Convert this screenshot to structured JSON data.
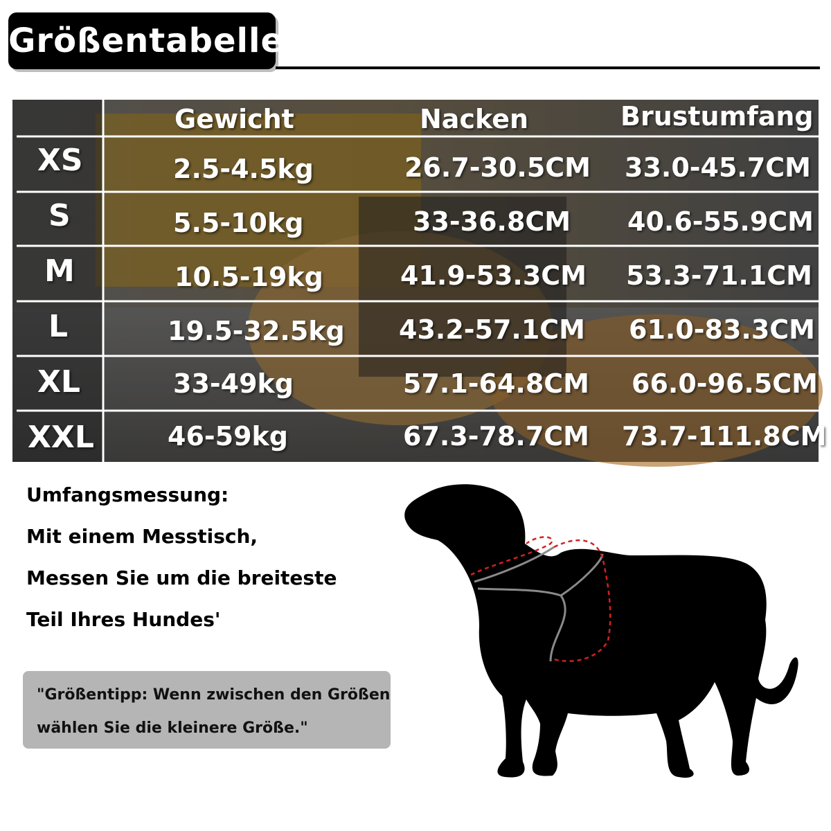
{
  "title": "Größentabelle",
  "table": {
    "headers": [
      "Gewicht",
      "Nacken",
      "Brustumfang"
    ],
    "rows": [
      {
        "size": "XS",
        "gewicht": "2.5-4.5kg",
        "nacken": "26.7-30.5CM",
        "brust": "33.0-45.7CM"
      },
      {
        "size": "S",
        "gewicht": "5.5-10kg",
        "nacken": "33-36.8CM",
        "brust": "40.6-55.9CM"
      },
      {
        "size": "M",
        "gewicht": "10.5-19kg",
        "nacken": "41.9-53.3CM",
        "brust": "53.3-71.1CM"
      },
      {
        "size": "L",
        "gewicht": "19.5-32.5kg",
        "nacken": "43.2-57.1CM",
        "brust": "61.0-83.3CM"
      },
      {
        "size": "XL",
        "gewicht": "33-49kg",
        "nacken": "57.1-64.8CM",
        "brust": "66.0-96.5CM"
      },
      {
        "size": "XXL",
        "gewicht": "46-59kg",
        "nacken": "67.3-78.7CM",
        "brust": "73.7-111.8CM"
      }
    ]
  },
  "measurement": {
    "lines": [
      "Umfangsmessung:",
      "Mit einem Messtisch,",
      "Messen Sie um die breiteste",
      "Teil Ihres Hundes'"
    ]
  },
  "tip": {
    "lines": [
      "\"Größentipp: Wenn zwischen den Größen",
      "wählen Sie die kleinere Größe.\""
    ]
  },
  "colors": {
    "title_bg": "#000000",
    "tip_bg": "#b5b5b5",
    "harness_line": "#d42020"
  },
  "illustration": "dog-silhouette-with-harness"
}
